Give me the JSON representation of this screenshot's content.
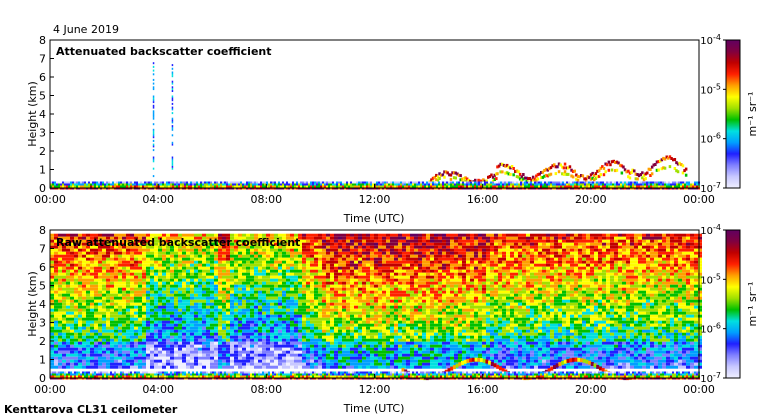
{
  "date": "4 June 2019",
  "footer": "Kenttarova CL31 ceilometer",
  "colorbar": {
    "label": "m⁻¹ sr⁻¹",
    "ticks": [
      "10^-4",
      "10^-5",
      "10^-6",
      "10^-7"
    ],
    "tick_values": [
      -4,
      -5,
      -6,
      -7
    ],
    "range_log10": [
      -7,
      -4
    ],
    "colors": [
      "#f0f0ff",
      "#c8c8ff",
      "#8080ff",
      "#2020ff",
      "#00a0ff",
      "#00e0e0",
      "#00c000",
      "#a0e000",
      "#ffff00",
      "#ffa000",
      "#ff2000",
      "#c00000",
      "#800040",
      "#600060"
    ]
  },
  "chart_data": [
    {
      "type": "heatmap",
      "title": "Attenuated backscatter coefficient",
      "xlabel": "Time (UTC)",
      "ylabel": "Height (km)",
      "xlim": [
        0,
        24
      ],
      "ylim": [
        0,
        8
      ],
      "x_ticks": [
        "00:00",
        "04:00",
        "08:00",
        "12:00",
        "16:00",
        "20:00",
        "00:00"
      ],
      "y_ticks": [
        "0",
        "1",
        "2",
        "3",
        "4",
        "5",
        "6",
        "7",
        "8"
      ],
      "features": [
        {
          "name": "surface layer",
          "start_h": 0,
          "end_h": 24,
          "top_km": 0.35
        },
        {
          "name": "cloud layer 1",
          "start_h": 14,
          "end_h": 16.5,
          "height_km": 0.8
        },
        {
          "name": "cloud layer 2",
          "start_h": 16.5,
          "end_h": 19,
          "height_km": 1.2
        },
        {
          "name": "cloud layer 3",
          "start_h": 19,
          "end_h": 21.5,
          "height_km": 1.3
        },
        {
          "name": "cloud layer 4",
          "start_h": 21.5,
          "end_h": 23.5,
          "height_km": 1.6
        },
        {
          "name": "precipitation streaks",
          "hours": [
            3.8,
            4.5
          ],
          "top_km": 6.8
        }
      ]
    },
    {
      "type": "heatmap",
      "title": "Raw attenuated backscatter coefficient",
      "xlabel": "Time (UTC)",
      "ylabel": "Height (km)",
      "xlim": [
        0,
        24
      ],
      "ylim": [
        0,
        8
      ],
      "x_ticks": [
        "00:00",
        "04:00",
        "08:00",
        "12:00",
        "16:00",
        "20:00",
        "00:00"
      ],
      "y_ticks": [
        "0",
        "1",
        "2",
        "3",
        "4",
        "5",
        "6",
        "7",
        "8"
      ],
      "features": [
        {
          "name": "noise field",
          "start_h": 0,
          "end_h": 24,
          "max_km": 7.8
        },
        {
          "name": "surface layer",
          "start_h": 0,
          "end_h": 24,
          "top_km": 0.35
        },
        {
          "name": "cloud return",
          "start_h": 13,
          "end_h": 22,
          "height_km": 1.0
        }
      ]
    }
  ]
}
